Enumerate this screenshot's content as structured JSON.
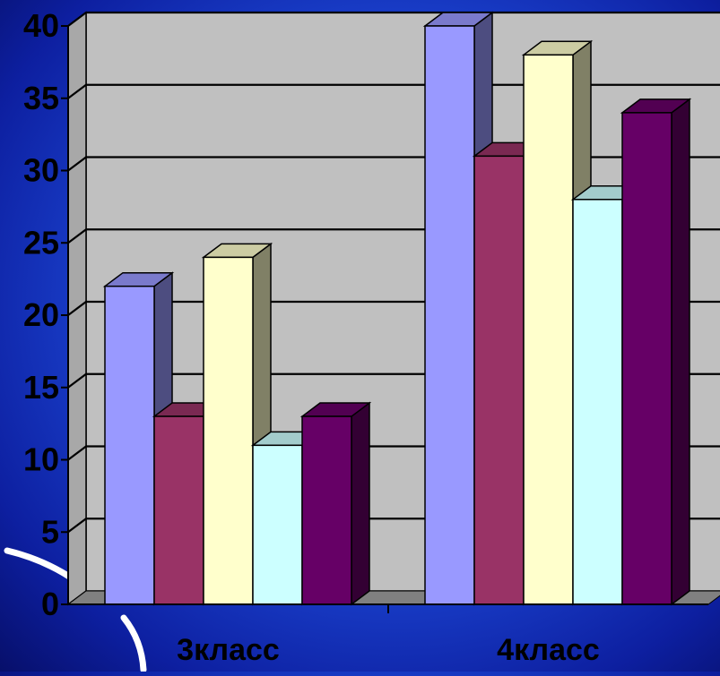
{
  "chart_data": {
    "type": "bar",
    "categories": [
      "3класс",
      "4класс"
    ],
    "series": [
      {
        "values": [
          22,
          40
        ],
        "color": "#9999ff"
      },
      {
        "values": [
          13,
          31
        ],
        "color": "#993366"
      },
      {
        "values": [
          24,
          38
        ],
        "color": "#ffffcc"
      },
      {
        "values": [
          11,
          28
        ],
        "color": "#ccffff"
      },
      {
        "values": [
          13,
          34
        ],
        "color": "#660066"
      }
    ],
    "ylim": [
      0,
      40
    ],
    "yticks": [
      0,
      5,
      10,
      15,
      20,
      25,
      30,
      35,
      40
    ],
    "grid": true,
    "legend": "none",
    "plot_background": "#c0c0c0",
    "floor_color": "#808080"
  }
}
